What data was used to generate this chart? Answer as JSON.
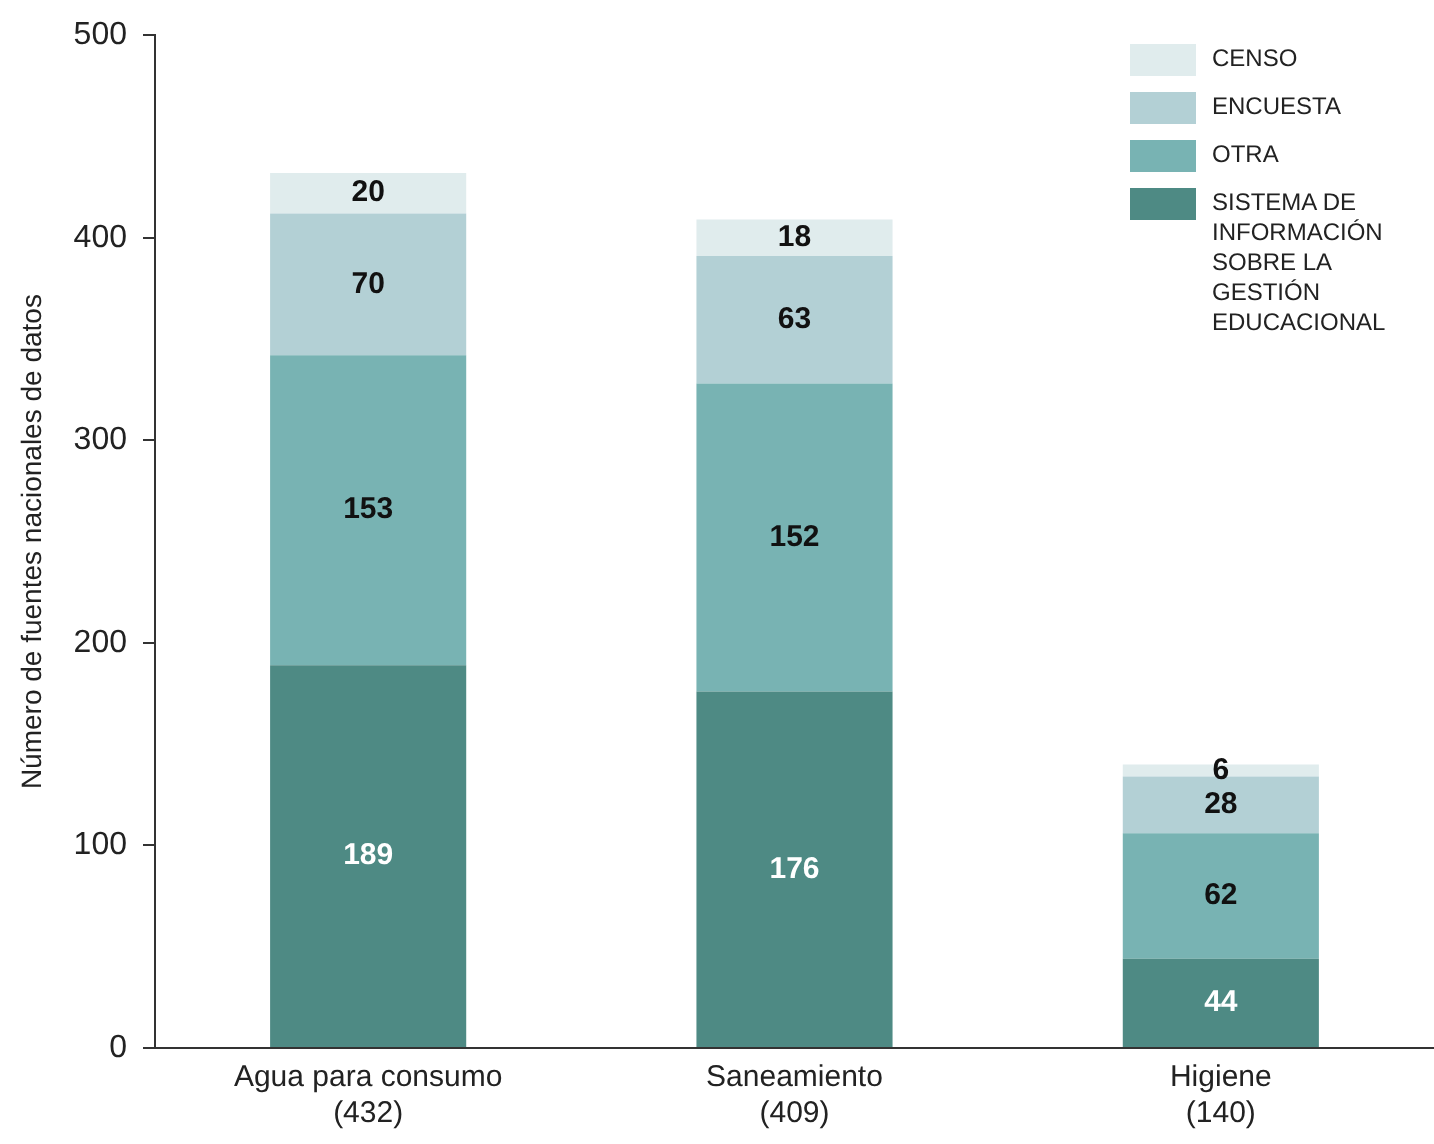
{
  "chart_data": {
    "type": "bar",
    "stacked": true,
    "ylabel": "Número de fuentes nacionales de datos",
    "categories": [
      "Agua para consumo\n(432)",
      "Saneamiento\n(409)",
      "Higiene\n(140)"
    ],
    "series": [
      {
        "name": "SISTEMA DE INFORMACIÓN SOBRE LA GESTIÓN EDUCACIONAL",
        "color": "#4e8a84",
        "values": [
          189,
          176,
          44
        ]
      },
      {
        "name": "OTRA",
        "color": "#78b3b3",
        "values": [
          153,
          152,
          62
        ]
      },
      {
        "name": "ENCUESTA",
        "color": "#b3d0d5",
        "values": [
          70,
          63,
          28
        ]
      },
      {
        "name": "CENSO",
        "color": "#e0eced",
        "values": [
          20,
          18,
          6
        ]
      }
    ],
    "ylim": [
      0,
      500
    ],
    "yticks": [
      0,
      100,
      200,
      300,
      400,
      500
    ],
    "grid": false,
    "legend": "top right",
    "data_labels": true
  }
}
